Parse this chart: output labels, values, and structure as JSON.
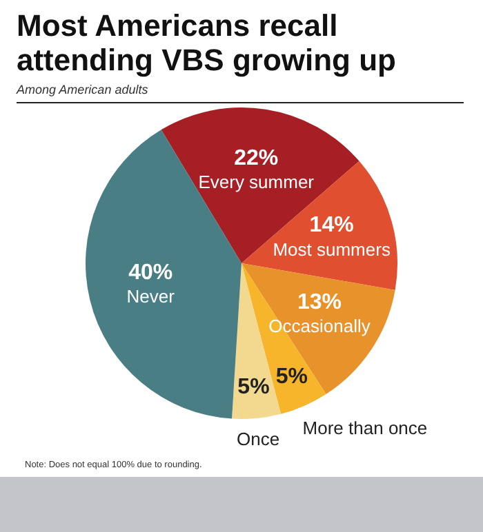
{
  "chart_data": {
    "type": "pie",
    "title": "Most Americans recall attending VBS growing up",
    "subtitle": "Among American adults",
    "categories": [
      "Every summer",
      "Most summers",
      "Occasionally",
      "More than once",
      "Once",
      "Never"
    ],
    "values": [
      22,
      14,
      13,
      5,
      5,
      40
    ],
    "value_labels": [
      "22%",
      "14%",
      "13%",
      "5%",
      "5%",
      "40%"
    ],
    "colors": [
      "#a51f24",
      "#e04f2f",
      "#e8922b",
      "#f6b52a",
      "#f2d98f",
      "#4a7e85"
    ],
    "legend": false,
    "annotations": [
      "Note: Does not equal 100% due to rounding."
    ]
  }
}
